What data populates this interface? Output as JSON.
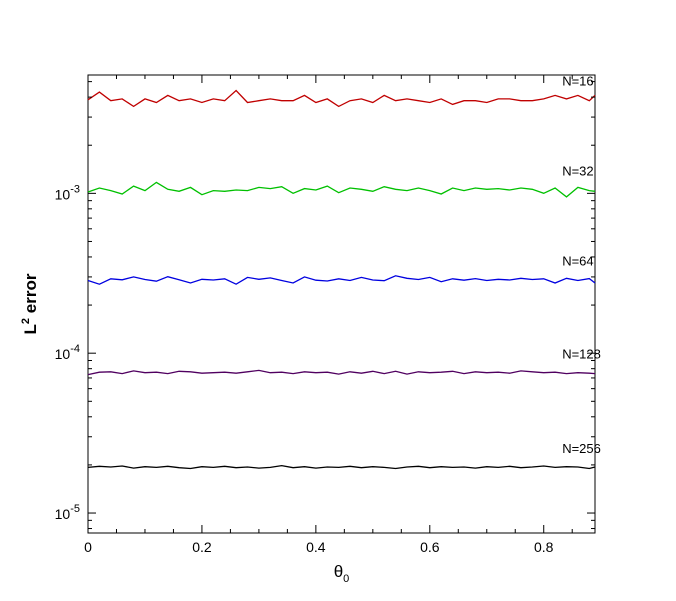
{
  "chart_data": {
    "type": "line",
    "title": "",
    "xlabel": "θ",
    "xlabel_sub": "0",
    "ylabel": "L",
    "ylabel_sup": "2",
    "ylabel_rest": " error",
    "xlim": [
      0,
      0.89
    ],
    "ylim": [
      7.5e-06,
      0.0055
    ],
    "yscale": "log",
    "grid": false,
    "legend": "none",
    "x_ticks": [
      {
        "value": 0,
        "label": "0"
      },
      {
        "value": 0.2,
        "label": "0.2"
      },
      {
        "value": 0.4,
        "label": "0.4"
      },
      {
        "value": 0.6,
        "label": "0.6"
      },
      {
        "value": 0.8,
        "label": "0.8"
      }
    ],
    "y_ticks": [
      {
        "value": 0.001,
        "base": "10",
        "exp": "-3"
      },
      {
        "value": 0.0001,
        "base": "10",
        "exp": "-4"
      },
      {
        "value": 1e-05,
        "base": "10",
        "exp": "-5"
      }
    ],
    "series": [
      {
        "name": "N=16",
        "color": "#c00000",
        "label_x": 0.85,
        "x": [
          0.0,
          0.02,
          0.04,
          0.06,
          0.08,
          0.1,
          0.12,
          0.14,
          0.16,
          0.18,
          0.2,
          0.22,
          0.24,
          0.26,
          0.28,
          0.3,
          0.32,
          0.34,
          0.36,
          0.38,
          0.4,
          0.42,
          0.44,
          0.46,
          0.48,
          0.5,
          0.52,
          0.54,
          0.56,
          0.58,
          0.6,
          0.62,
          0.64,
          0.66,
          0.68,
          0.7,
          0.72,
          0.74,
          0.76,
          0.78,
          0.8,
          0.82,
          0.84,
          0.86,
          0.88,
          0.89
        ],
        "values": [
          0.00385,
          0.0043,
          0.0038,
          0.0039,
          0.0035,
          0.0039,
          0.0037,
          0.0041,
          0.0038,
          0.0039,
          0.0037,
          0.0039,
          0.0038,
          0.0044,
          0.0037,
          0.0038,
          0.0039,
          0.0038,
          0.0038,
          0.0041,
          0.0037,
          0.0039,
          0.0035,
          0.0038,
          0.0039,
          0.0037,
          0.0041,
          0.0038,
          0.0039,
          0.0038,
          0.0037,
          0.0039,
          0.0036,
          0.0038,
          0.0038,
          0.0037,
          0.0039,
          0.0039,
          0.0038,
          0.0038,
          0.0039,
          0.0041,
          0.0039,
          0.0041,
          0.0038,
          0.0041
        ]
      },
      {
        "name": "N=32",
        "color": "#00c000",
        "label_x": 0.85,
        "x": [
          0.0,
          0.02,
          0.04,
          0.06,
          0.08,
          0.1,
          0.12,
          0.14,
          0.16,
          0.18,
          0.2,
          0.22,
          0.24,
          0.26,
          0.28,
          0.3,
          0.32,
          0.34,
          0.36,
          0.38,
          0.4,
          0.42,
          0.44,
          0.46,
          0.48,
          0.5,
          0.52,
          0.54,
          0.56,
          0.58,
          0.6,
          0.62,
          0.64,
          0.66,
          0.68,
          0.7,
          0.72,
          0.74,
          0.76,
          0.78,
          0.8,
          0.82,
          0.84,
          0.86,
          0.88,
          0.89
        ],
        "values": [
          0.00102,
          0.00108,
          0.00104,
          0.00099,
          0.00111,
          0.00104,
          0.00117,
          0.00106,
          0.00103,
          0.00109,
          0.00098,
          0.00104,
          0.00103,
          0.00105,
          0.00104,
          0.00109,
          0.00107,
          0.0011,
          0.001,
          0.00107,
          0.00105,
          0.00111,
          0.00101,
          0.00108,
          0.00106,
          0.00103,
          0.0011,
          0.00106,
          0.00104,
          0.00108,
          0.00104,
          0.00099,
          0.00108,
          0.00104,
          0.00108,
          0.00106,
          0.00107,
          0.00105,
          0.00108,
          0.00106,
          0.001,
          0.00108,
          0.00095,
          0.00109,
          0.00104,
          0.00103
        ]
      },
      {
        "name": "N=64",
        "color": "#0000e0",
        "label_x": 0.85,
        "x": [
          0.0,
          0.02,
          0.04,
          0.06,
          0.08,
          0.1,
          0.12,
          0.14,
          0.16,
          0.18,
          0.2,
          0.22,
          0.24,
          0.26,
          0.28,
          0.3,
          0.32,
          0.34,
          0.36,
          0.38,
          0.4,
          0.42,
          0.44,
          0.46,
          0.48,
          0.5,
          0.52,
          0.54,
          0.56,
          0.58,
          0.6,
          0.62,
          0.64,
          0.66,
          0.68,
          0.7,
          0.72,
          0.74,
          0.76,
          0.78,
          0.8,
          0.82,
          0.84,
          0.86,
          0.88,
          0.89
        ],
        "values": [
          0.000285,
          0.00027,
          0.000292,
          0.000288,
          0.0003,
          0.000289,
          0.000282,
          0.000301,
          0.000288,
          0.000275,
          0.00029,
          0.000287,
          0.000292,
          0.00027,
          0.000298,
          0.00029,
          0.000296,
          0.000285,
          0.000275,
          0.0003,
          0.000286,
          0.000283,
          0.000292,
          0.000285,
          0.000298,
          0.000287,
          0.000284,
          0.000305,
          0.000294,
          0.000289,
          0.000298,
          0.00028,
          0.000292,
          0.000286,
          0.000293,
          0.000285,
          0.00029,
          0.000287,
          0.000294,
          0.000289,
          0.000292,
          0.000275,
          0.000294,
          0.000285,
          0.000293,
          0.000275
        ]
      },
      {
        "name": "N=128",
        "color": "#500060",
        "label_x": 0.85,
        "x": [
          0.0,
          0.02,
          0.04,
          0.06,
          0.08,
          0.1,
          0.12,
          0.14,
          0.16,
          0.18,
          0.2,
          0.22,
          0.24,
          0.26,
          0.28,
          0.3,
          0.32,
          0.34,
          0.36,
          0.38,
          0.4,
          0.42,
          0.44,
          0.46,
          0.48,
          0.5,
          0.52,
          0.54,
          0.56,
          0.58,
          0.6,
          0.62,
          0.64,
          0.66,
          0.68,
          0.7,
          0.72,
          0.74,
          0.76,
          0.78,
          0.8,
          0.82,
          0.84,
          0.86,
          0.88,
          0.89
        ],
        "values": [
          7.35e-05,
          7.6e-05,
          7.65e-05,
          7.45e-05,
          7.75e-05,
          7.55e-05,
          7.6e-05,
          7.45e-05,
          7.7e-05,
          7.65e-05,
          7.5e-05,
          7.55e-05,
          7.6e-05,
          7.5e-05,
          7.65e-05,
          7.8e-05,
          7.55e-05,
          7.6e-05,
          7.45e-05,
          7.65e-05,
          7.55e-05,
          7.6e-05,
          7.4e-05,
          7.65e-05,
          7.5e-05,
          7.7e-05,
          7.45e-05,
          7.7e-05,
          7.4e-05,
          7.65e-05,
          7.55e-05,
          7.6e-05,
          7.7e-05,
          7.45e-05,
          7.65e-05,
          7.55e-05,
          7.6e-05,
          7.5e-05,
          7.75e-05,
          7.65e-05,
          7.55e-05,
          7.6e-05,
          7.45e-05,
          7.55e-05,
          7.5e-05,
          7.45e-05
        ]
      },
      {
        "name": "N=256",
        "color": "#000000",
        "label_x": 0.85,
        "x": [
          0.0,
          0.02,
          0.04,
          0.06,
          0.08,
          0.1,
          0.12,
          0.14,
          0.16,
          0.18,
          0.2,
          0.22,
          0.24,
          0.26,
          0.28,
          0.3,
          0.32,
          0.34,
          0.36,
          0.38,
          0.4,
          0.42,
          0.44,
          0.46,
          0.48,
          0.5,
          0.52,
          0.54,
          0.56,
          0.58,
          0.6,
          0.62,
          0.64,
          0.66,
          0.68,
          0.7,
          0.72,
          0.74,
          0.76,
          0.78,
          0.8,
          0.82,
          0.84,
          0.86,
          0.88,
          0.89
        ],
        "values": [
          1.93e-05,
          1.96e-05,
          1.94e-05,
          1.97e-05,
          1.91e-05,
          1.95e-05,
          1.93e-05,
          1.96e-05,
          1.92e-05,
          1.9e-05,
          1.95e-05,
          1.93e-05,
          1.96e-05,
          1.92e-05,
          1.94e-05,
          1.91e-05,
          1.93e-05,
          1.98e-05,
          1.92e-05,
          1.95e-05,
          1.91e-05,
          1.94e-05,
          1.93e-05,
          1.96e-05,
          1.92e-05,
          1.95e-05,
          1.93e-05,
          1.9e-05,
          1.94e-05,
          1.96e-05,
          1.92e-05,
          1.95e-05,
          1.93e-05,
          1.94e-05,
          1.91e-05,
          1.95e-05,
          1.93e-05,
          1.96e-05,
          1.92e-05,
          1.94e-05,
          1.97e-05,
          1.93e-05,
          1.95e-05,
          1.94e-05,
          1.9e-05,
          1.94e-05
        ]
      }
    ]
  }
}
